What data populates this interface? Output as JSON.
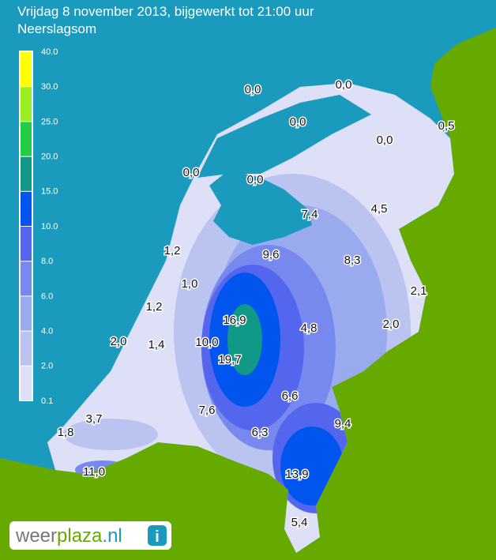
{
  "header": {
    "title": "Vrijdag 8 november 2013, bijgewerkt tot 21:00 uur",
    "subtitle": "Neerslagsom"
  },
  "legend": {
    "labels": [
      "40.0",
      "30.0",
      "25.0",
      "20.0",
      "15.0",
      "10.0",
      "8.0",
      "6.0",
      "4.0",
      "2.0",
      "0.1"
    ],
    "colors": [
      "#ffff00",
      "#99ee22",
      "#22cc44",
      "#119988",
      "#0055ee",
      "#5566ee",
      "#7788ee",
      "#99aaee",
      "#bbc4f0",
      "#dde0f7"
    ]
  },
  "stations": [
    "0,0",
    "0,0",
    "0,0",
    "0,5",
    "0,0",
    "0,0",
    "0,0",
    "7,4",
    "4,5",
    "1,2",
    "9,6",
    "8,3",
    "1,0",
    "1,2",
    "2,1",
    "16,9",
    "2,0",
    "4,8",
    "2,0",
    "1,4",
    "10,0",
    "19,7",
    "6,6",
    "7,6",
    "3,7",
    "9,4",
    "1,8",
    "6,3",
    "11,0",
    "13,9",
    "5,4"
  ],
  "logo": {
    "part1": "weer",
    "part2": "plaza",
    "part3": ".nl",
    "icon": "i"
  }
}
